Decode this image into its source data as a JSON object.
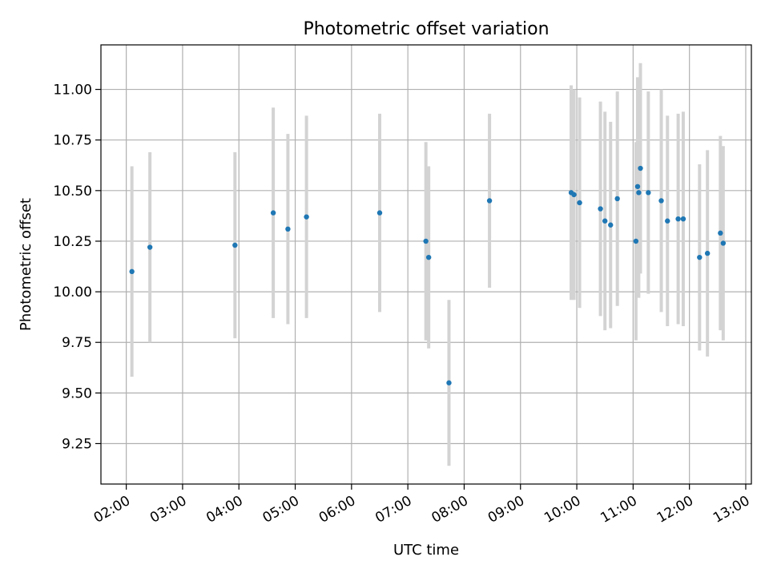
{
  "chart_data": {
    "type": "scatter",
    "title": "Photometric offset variation",
    "xlabel": "UTC time",
    "ylabel": "Photometric offset",
    "x_unit": "hours (UTC)",
    "xlim": [
      1.55,
      13.1
    ],
    "ylim": [
      9.05,
      11.22
    ],
    "x_ticks": [
      {
        "value": 2,
        "label": "02:00"
      },
      {
        "value": 3,
        "label": "03:00"
      },
      {
        "value": 4,
        "label": "04:00"
      },
      {
        "value": 5,
        "label": "05:00"
      },
      {
        "value": 6,
        "label": "06:00"
      },
      {
        "value": 7,
        "label": "07:00"
      },
      {
        "value": 8,
        "label": "08:00"
      },
      {
        "value": 9,
        "label": "09:00"
      },
      {
        "value": 10,
        "label": "10:00"
      },
      {
        "value": 11,
        "label": "11:00"
      },
      {
        "value": 12,
        "label": "12:00"
      },
      {
        "value": 13,
        "label": "13:00"
      }
    ],
    "y_ticks": [
      {
        "value": 9.25,
        "label": "9.25"
      },
      {
        "value": 9.5,
        "label": "9.50"
      },
      {
        "value": 9.75,
        "label": "9.75"
      },
      {
        "value": 10.0,
        "label": "10.00"
      },
      {
        "value": 10.25,
        "label": "10.25"
      },
      {
        "value": 10.5,
        "label": "10.50"
      },
      {
        "value": 10.75,
        "label": "10.75"
      },
      {
        "value": 11.0,
        "label": "11.00"
      }
    ],
    "grid": true,
    "point_color": "#1f77b4",
    "errorbar_color": "#d3d3d3",
    "points": [
      {
        "x": 2.1,
        "y": 10.1,
        "err": 0.52
      },
      {
        "x": 2.42,
        "y": 10.22,
        "err": 0.47
      },
      {
        "x": 3.93,
        "y": 10.23,
        "err": 0.46
      },
      {
        "x": 4.61,
        "y": 10.39,
        "err": 0.52
      },
      {
        "x": 4.87,
        "y": 10.31,
        "err": 0.47
      },
      {
        "x": 5.2,
        "y": 10.37,
        "err": 0.5
      },
      {
        "x": 6.5,
        "y": 10.39,
        "err": 0.49
      },
      {
        "x": 7.32,
        "y": 10.25,
        "err": 0.49
      },
      {
        "x": 7.37,
        "y": 10.17,
        "err": 0.45
      },
      {
        "x": 7.73,
        "y": 9.55,
        "err": 0.41
      },
      {
        "x": 8.45,
        "y": 10.45,
        "err": 0.43
      },
      {
        "x": 9.9,
        "y": 10.49,
        "err": 0.53
      },
      {
        "x": 9.95,
        "y": 10.48,
        "err": 0.52
      },
      {
        "x": 10.05,
        "y": 10.44,
        "err": 0.52
      },
      {
        "x": 10.42,
        "y": 10.41,
        "err": 0.53
      },
      {
        "x": 10.5,
        "y": 10.35,
        "err": 0.54
      },
      {
        "x": 10.6,
        "y": 10.33,
        "err": 0.51
      },
      {
        "x": 10.72,
        "y": 10.46,
        "err": 0.53
      },
      {
        "x": 11.05,
        "y": 10.25,
        "err": 0.49
      },
      {
        "x": 11.08,
        "y": 10.52,
        "err": 0.54
      },
      {
        "x": 11.1,
        "y": 10.49,
        "err": 0.52
      },
      {
        "x": 11.13,
        "y": 10.61,
        "err": 0.52
      },
      {
        "x": 11.27,
        "y": 10.49,
        "err": 0.5
      },
      {
        "x": 11.5,
        "y": 10.45,
        "err": 0.55
      },
      {
        "x": 11.61,
        "y": 10.35,
        "err": 0.52
      },
      {
        "x": 11.8,
        "y": 10.36,
        "err": 0.52
      },
      {
        "x": 11.89,
        "y": 10.36,
        "err": 0.53
      },
      {
        "x": 12.18,
        "y": 10.17,
        "err": 0.46
      },
      {
        "x": 12.32,
        "y": 10.19,
        "err": 0.51
      },
      {
        "x": 12.55,
        "y": 10.29,
        "err": 0.48
      },
      {
        "x": 12.6,
        "y": 10.24,
        "err": 0.48
      }
    ]
  }
}
